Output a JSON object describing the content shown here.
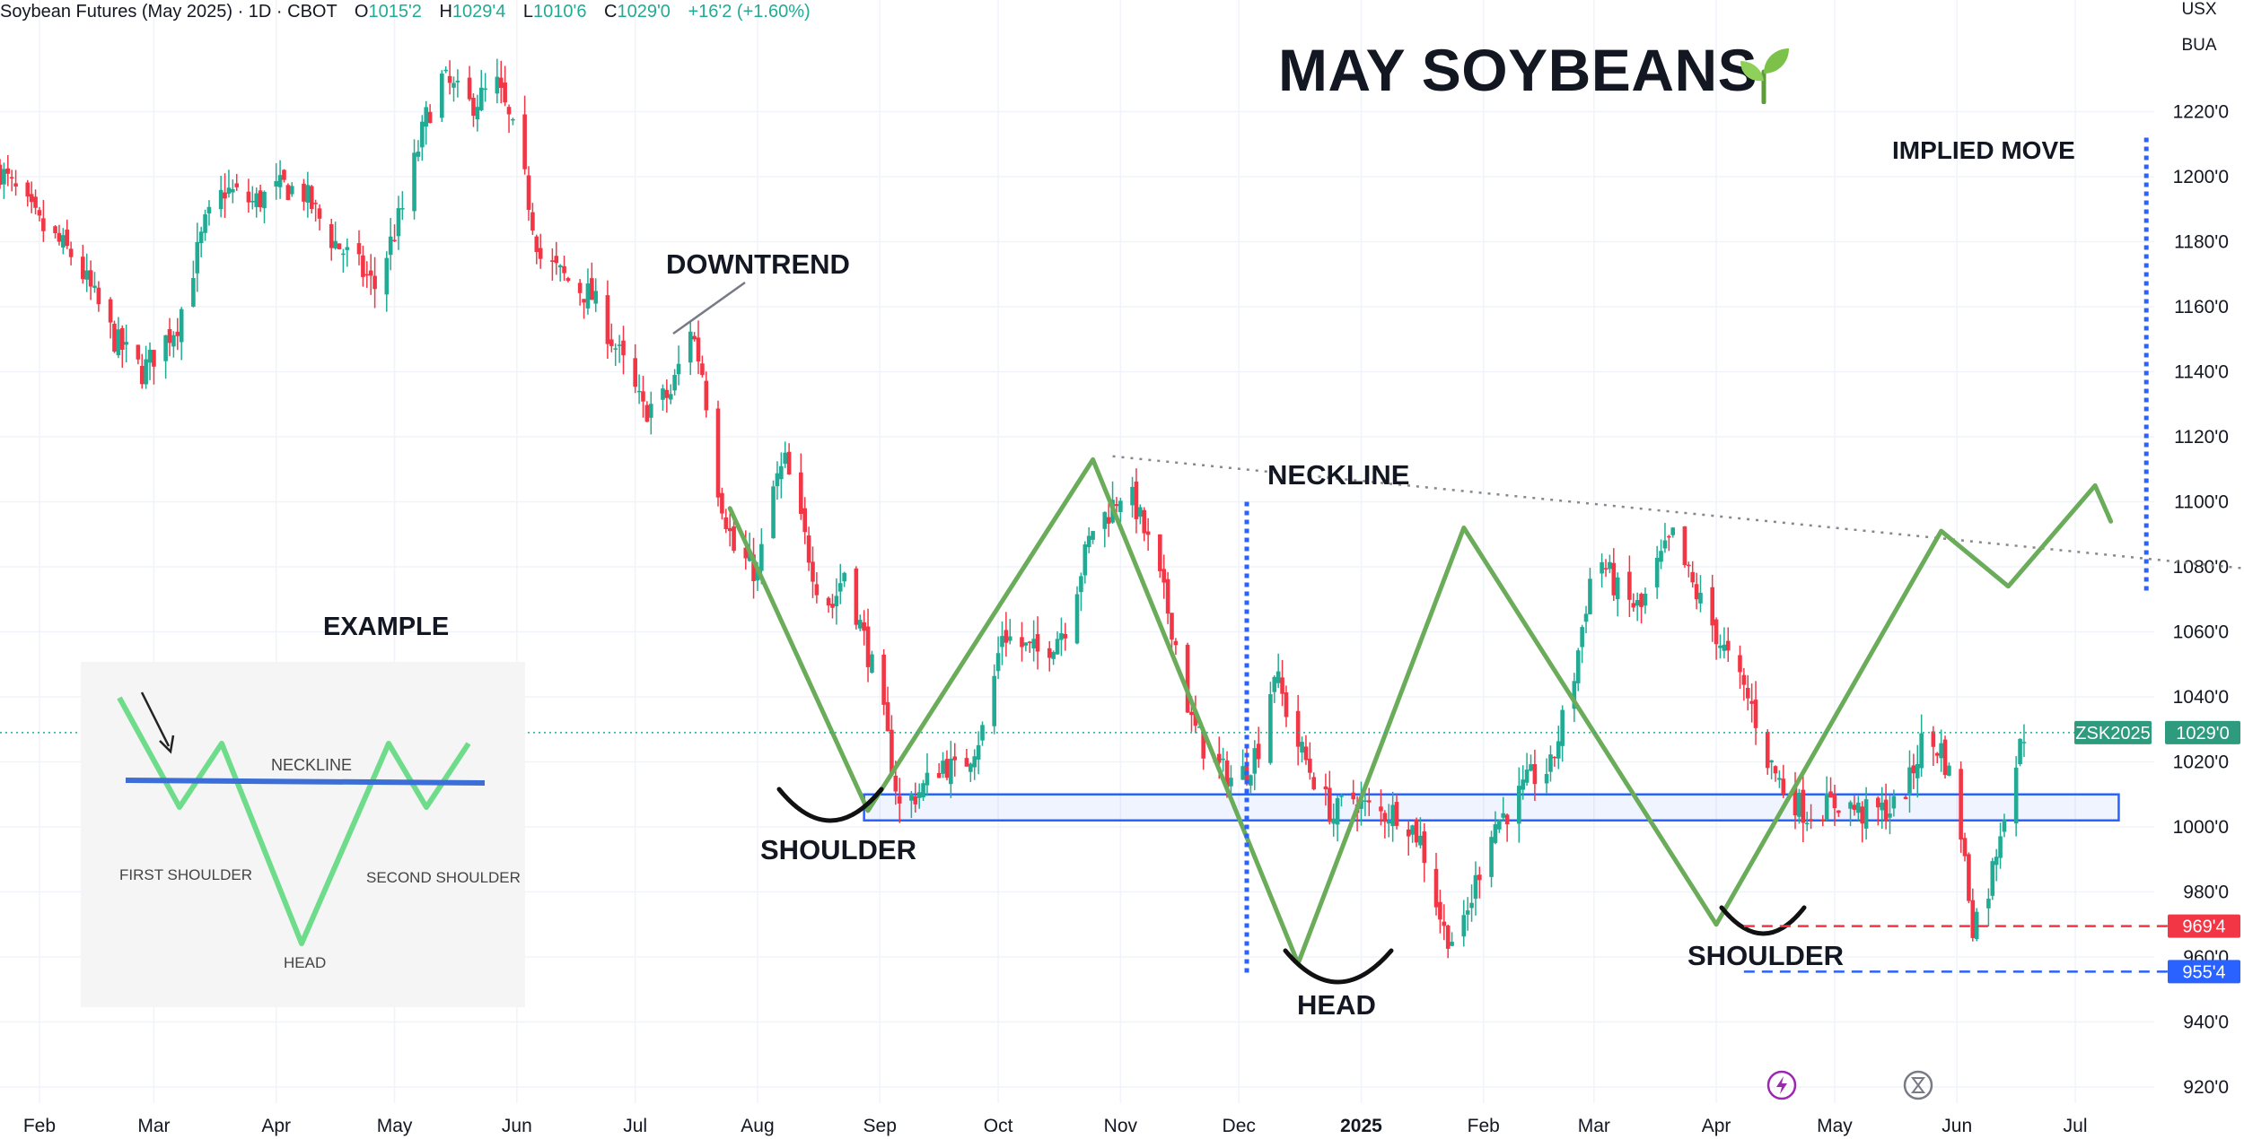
{
  "header": {
    "symbol": "Soybean Futures (May 2025) · 1D · CBOT",
    "open_label": "O",
    "open": "1015'2",
    "high_label": "H",
    "high": "1029'4",
    "low_label": "L",
    "low": "1010'6",
    "close_label": "C",
    "close": "1029'0",
    "change": "+16'2 (+1.60%)"
  },
  "units": {
    "currency": "USX",
    "unit": "BUA"
  },
  "annotations": {
    "title": "MAY SOYBEANS",
    "title_icon": "seedling-icon",
    "downtrend": "DOWNTREND",
    "neckline": "NECKLINE",
    "implied_move": "IMPLIED MOVE",
    "shoulder_left": "SHOULDER",
    "head": "HEAD",
    "shoulder_right": "SHOULDER",
    "example": "EXAMPLE"
  },
  "example_diagram": {
    "neckline": "NECKLINE",
    "first_shoulder": "FIRST SHOULDER",
    "head": "HEAD",
    "second_shoulder": "SECOND SHOULDER"
  },
  "colors": {
    "up": "#22ab94",
    "down": "#f23645",
    "pattern_green": "#6aac5a",
    "blue": "#2962ff",
    "price_tag_bg": "#2e9a7e",
    "red_tag": "#f23645",
    "blue_tag": "#2962ff",
    "example_green": "#6fdc8c"
  },
  "bottom_icons": [
    "lightning-icon",
    "hourglass-icon"
  ],
  "chart_data": {
    "type": "candlestick",
    "title": "Soybean Futures (May 2025) · 1D · CBOT",
    "ylim": [
      913,
      1255
    ],
    "y_ticks": [
      "1220'0",
      "1200'0",
      "1180'0",
      "1160'0",
      "1140'0",
      "1120'0",
      "1100'0",
      "1080'0",
      "1060'0",
      "1040'0",
      "1020'0",
      "1000'0",
      "980'0",
      "960'0",
      "940'0",
      "920'0"
    ],
    "y_tick_values": [
      1220,
      1200,
      1180,
      1160,
      1140,
      1120,
      1100,
      1080,
      1060,
      1040,
      1020,
      1000,
      980,
      960,
      940,
      920
    ],
    "x_ticks": [
      "Feb",
      "Mar",
      "Apr",
      "May",
      "Jun",
      "Jul",
      "Aug",
      "Sep",
      "Oct",
      "Nov",
      "Dec",
      "2025",
      "Feb",
      "Mar",
      "Apr",
      "May",
      "Jun",
      "Jul"
    ],
    "x_tick_dates": [
      "2024-02-01",
      "2024-03-01",
      "2024-04-01",
      "2024-05-01",
      "2024-06-01",
      "2024-07-01",
      "2024-08-01",
      "2024-09-01",
      "2024-10-01",
      "2024-11-01",
      "2024-12-01",
      "2025-01-01",
      "2025-02-01",
      "2025-03-01",
      "2025-04-01",
      "2025-05-01",
      "2025-06-01",
      "2025-07-01"
    ],
    "date_range": [
      "2024-01-22",
      "2025-07-21"
    ],
    "close_path": [
      [
        "2024-01-22",
        1202
      ],
      [
        "2024-02-01",
        1185
      ],
      [
        "2024-02-10",
        1175
      ],
      [
        "2024-02-20",
        1150
      ],
      [
        "2024-02-27",
        1140
      ],
      [
        "2024-03-07",
        1155
      ],
      [
        "2024-03-14",
        1185
      ],
      [
        "2024-03-19",
        1196
      ],
      [
        "2024-03-26",
        1192
      ],
      [
        "2024-04-03",
        1197
      ],
      [
        "2024-04-08",
        1195
      ],
      [
        "2024-04-15",
        1181
      ],
      [
        "2024-04-22",
        1172
      ],
      [
        "2024-04-26",
        1166
      ],
      [
        "2024-05-03",
        1190
      ],
      [
        "2024-05-09",
        1218
      ],
      [
        "2024-05-13",
        1230
      ],
      [
        "2024-05-20",
        1222
      ],
      [
        "2024-05-27",
        1228
      ],
      [
        "2024-06-01",
        1210
      ],
      [
        "2024-06-07",
        1175
      ],
      [
        "2024-06-14",
        1168
      ],
      [
        "2024-06-20",
        1163
      ],
      [
        "2024-06-27",
        1145
      ],
      [
        "2024-07-03",
        1128
      ],
      [
        "2024-07-10",
        1133
      ],
      [
        "2024-07-15",
        1154
      ],
      [
        "2024-07-18",
        1140
      ],
      [
        "2024-07-22",
        1105
      ],
      [
        "2024-07-26",
        1085
      ],
      [
        "2024-08-01",
        1078
      ],
      [
        "2024-08-05",
        1104
      ],
      [
        "2024-08-08",
        1112
      ],
      [
        "2024-08-12",
        1093
      ],
      [
        "2024-08-16",
        1075
      ],
      [
        "2024-08-20",
        1068
      ],
      [
        "2024-08-23",
        1079
      ],
      [
        "2024-08-28",
        1058
      ],
      [
        "2024-09-01",
        1040
      ],
      [
        "2024-09-06",
        1006
      ],
      [
        "2024-09-12",
        1012
      ],
      [
        "2024-09-17",
        1020
      ],
      [
        "2024-09-21",
        1016
      ],
      [
        "2024-09-28",
        1032
      ],
      [
        "2024-10-02",
        1060
      ],
      [
        "2024-10-06",
        1056
      ],
      [
        "2024-10-12",
        1053
      ],
      [
        "2024-10-18",
        1062
      ],
      [
        "2024-10-25",
        1092
      ],
      [
        "2024-10-29",
        1097
      ],
      [
        "2024-11-02",
        1105
      ],
      [
        "2024-11-05",
        1098
      ],
      [
        "2024-11-10",
        1080
      ],
      [
        "2024-11-14",
        1062
      ],
      [
        "2024-11-19",
        1032
      ],
      [
        "2024-11-24",
        1020
      ],
      [
        "2024-11-30",
        1014
      ],
      [
        "2024-12-03",
        1018
      ],
      [
        "2024-12-06",
        1025
      ],
      [
        "2024-12-10",
        1048
      ],
      [
        "2024-12-15",
        1028
      ],
      [
        "2024-12-20",
        1015
      ],
      [
        "2024-12-25",
        1003
      ],
      [
        "2024-12-29",
        1010
      ],
      [
        "2025-01-02",
        1006
      ],
      [
        "2025-01-06",
        1004
      ],
      [
        "2025-01-11",
        1005
      ],
      [
        "2025-01-16",
        996
      ],
      [
        "2025-01-22",
        968
      ],
      [
        "2025-01-26",
        964
      ],
      [
        "2025-01-30",
        983
      ],
      [
        "2025-02-03",
        1000
      ],
      [
        "2025-02-08",
        1006
      ],
      [
        "2025-02-13",
        1015
      ],
      [
        "2025-02-18",
        1018
      ],
      [
        "2025-02-24",
        1047
      ],
      [
        "2025-02-28",
        1076
      ],
      [
        "2025-03-03",
        1082
      ],
      [
        "2025-03-08",
        1070
      ],
      [
        "2025-03-13",
        1067
      ],
      [
        "2025-03-17",
        1080
      ],
      [
        "2025-03-21",
        1089
      ],
      [
        "2025-03-26",
        1074
      ],
      [
        "2025-03-31",
        1062
      ],
      [
        "2025-04-05",
        1049
      ],
      [
        "2025-04-10",
        1037
      ],
      [
        "2025-04-14",
        1021
      ],
      [
        "2025-04-18",
        1012
      ],
      [
        "2025-04-24",
        1004
      ],
      [
        "2025-04-28",
        1006
      ],
      [
        "2025-05-03",
        1008
      ],
      [
        "2025-05-08",
        1004
      ],
      [
        "2025-05-13",
        1005
      ],
      [
        "2025-05-16",
        1006
      ],
      [
        "2025-05-20",
        1014
      ],
      [
        "2025-05-23",
        1026
      ],
      [
        "2025-05-28",
        1024
      ],
      [
        "2025-06-01",
        1008
      ],
      [
        "2025-06-05",
        970
      ],
      [
        "2025-06-09",
        981
      ],
      [
        "2025-06-13",
        1006
      ],
      [
        "2025-06-18",
        1029
      ]
    ],
    "last_price_tag": {
      "symbol": "ZSK2025",
      "price": "1029'0",
      "value": 1029
    },
    "level_tags": [
      {
        "label": "969'4",
        "value": 969.5,
        "color": "red",
        "style": "dashed"
      },
      {
        "label": "955'4",
        "value": 955.5,
        "color": "blue",
        "style": "dashed"
      }
    ],
    "support_zone": {
      "from": "2024-08-28",
      "to": "2025-07-12",
      "low": 1002,
      "high": 1010
    },
    "neckline_trendline": {
      "start": [
        "2024-10-30",
        1114
      ],
      "end": [
        "2025-10-31",
        1070
      ]
    },
    "hs_pattern_line": [
      [
        "2024-07-25",
        1098
      ],
      [
        "2024-08-29",
        1005
      ],
      [
        "2024-10-25",
        1113
      ],
      [
        "2024-12-16",
        958
      ],
      [
        "2025-01-27",
        1092
      ],
      [
        "2025-04-01",
        970
      ],
      [
        "2025-05-28",
        1091
      ],
      [
        "2025-06-14",
        1074
      ],
      [
        "2025-07-06",
        1105
      ],
      [
        "2025-07-10",
        1094
      ]
    ],
    "head_vertical_line": {
      "date": "2024-12-03",
      "from": 955,
      "to": 1100
    },
    "implied_move_line": {
      "date": "2025-07-19",
      "from": 1072,
      "to": 1212
    },
    "grid": true
  }
}
